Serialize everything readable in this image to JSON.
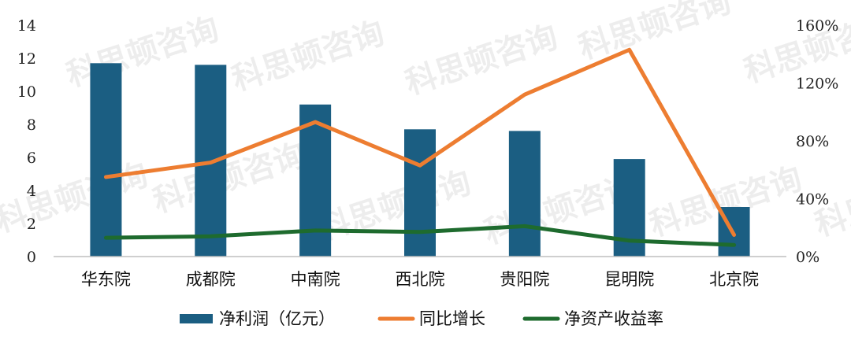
{
  "watermark": "科思顿咨询",
  "chart_data": {
    "type": "bar",
    "categories": [
      "华东院",
      "成都院",
      "中南院",
      "西北院",
      "贵阳院",
      "昆明院",
      "北京院"
    ],
    "series": [
      {
        "name": "净利润（亿元）",
        "type": "bar",
        "axis": "left",
        "color": "#1B5E82",
        "values": [
          11.7,
          11.6,
          9.2,
          7.7,
          7.6,
          5.9,
          3.0
        ]
      },
      {
        "name": "同比增长",
        "type": "line",
        "axis": "right",
        "color": "#ED7D31",
        "values": [
          55,
          65,
          93,
          63,
          112,
          143,
          15
        ]
      },
      {
        "name": "净资产收益率",
        "type": "line",
        "axis": "right",
        "color": "#1E6B2E",
        "values": [
          13,
          14,
          18,
          17,
          21,
          11,
          8
        ]
      }
    ],
    "y_left": {
      "min": 0,
      "max": 14,
      "ticks": [
        "0",
        "2",
        "4",
        "6",
        "8",
        "10",
        "12",
        "14"
      ]
    },
    "y_right": {
      "min": 0,
      "max": 160,
      "ticks": [
        "0%",
        "40%",
        "80%",
        "120%",
        "160%"
      ]
    },
    "grid": false,
    "legend": "bottom-center"
  }
}
